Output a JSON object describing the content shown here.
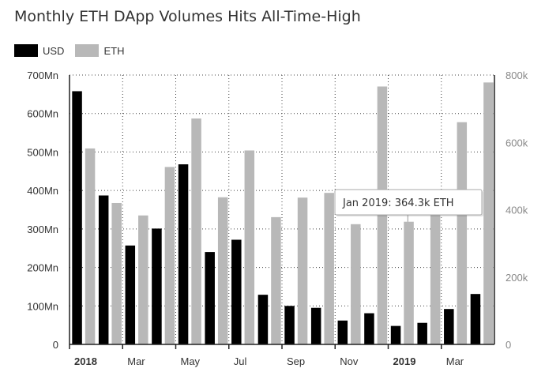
{
  "chart_data": {
    "type": "bar",
    "title": "Monthly ETH DApp Volumes Hits All-Time-High",
    "categories": [
      "2018-01",
      "2018-02",
      "2018-03",
      "2018-04",
      "2018-05",
      "2018-06",
      "2018-07",
      "2018-08",
      "2018-09",
      "2018-10",
      "2018-11",
      "2018-12",
      "2019-01",
      "2019-02",
      "2019-03",
      "2019-04"
    ],
    "x_tick_labels": [
      {
        "index": 0,
        "label": "2018",
        "bold": true
      },
      {
        "index": 2,
        "label": "Mar"
      },
      {
        "index": 4,
        "label": "May"
      },
      {
        "index": 6,
        "label": "Jul"
      },
      {
        "index": 8,
        "label": "Sep"
      },
      {
        "index": 10,
        "label": "Nov"
      },
      {
        "index": 12,
        "label": "2019",
        "bold": true
      },
      {
        "index": 14,
        "label": "Mar"
      }
    ],
    "series": [
      {
        "name": "USD",
        "color": "#000000",
        "axis": "left",
        "values": [
          658,
          387,
          257,
          301,
          468,
          240,
          272,
          129,
          100,
          95,
          62,
          81,
          48,
          56,
          92,
          131
        ]
      },
      {
        "name": "ETH",
        "color": "#b8b8b8",
        "axis": "right",
        "values": [
          582,
          420,
          383,
          527,
          671,
          437,
          576,
          378,
          436,
          450,
          357,
          766,
          364.3,
          400,
          660,
          778
        ]
      }
    ],
    "y_left": {
      "min": 0,
      "max": 700,
      "ticks": [
        0,
        100,
        200,
        300,
        400,
        500,
        600,
        700
      ],
      "tick_labels": [
        "0",
        "100Mn",
        "200Mn",
        "300Mn",
        "400Mn",
        "500Mn",
        "600Mn",
        "700Mn"
      ]
    },
    "y_right": {
      "min": 0,
      "max": 800,
      "ticks": [
        0,
        200,
        400,
        600,
        800
      ],
      "tick_labels": [
        "0",
        "200k",
        "400k",
        "600k",
        "800k"
      ]
    },
    "grid": true,
    "legend_position": "top-left",
    "tooltip": {
      "index": 12,
      "series": "ETH",
      "text": "Jan 2019: 364.3k ETH"
    }
  }
}
